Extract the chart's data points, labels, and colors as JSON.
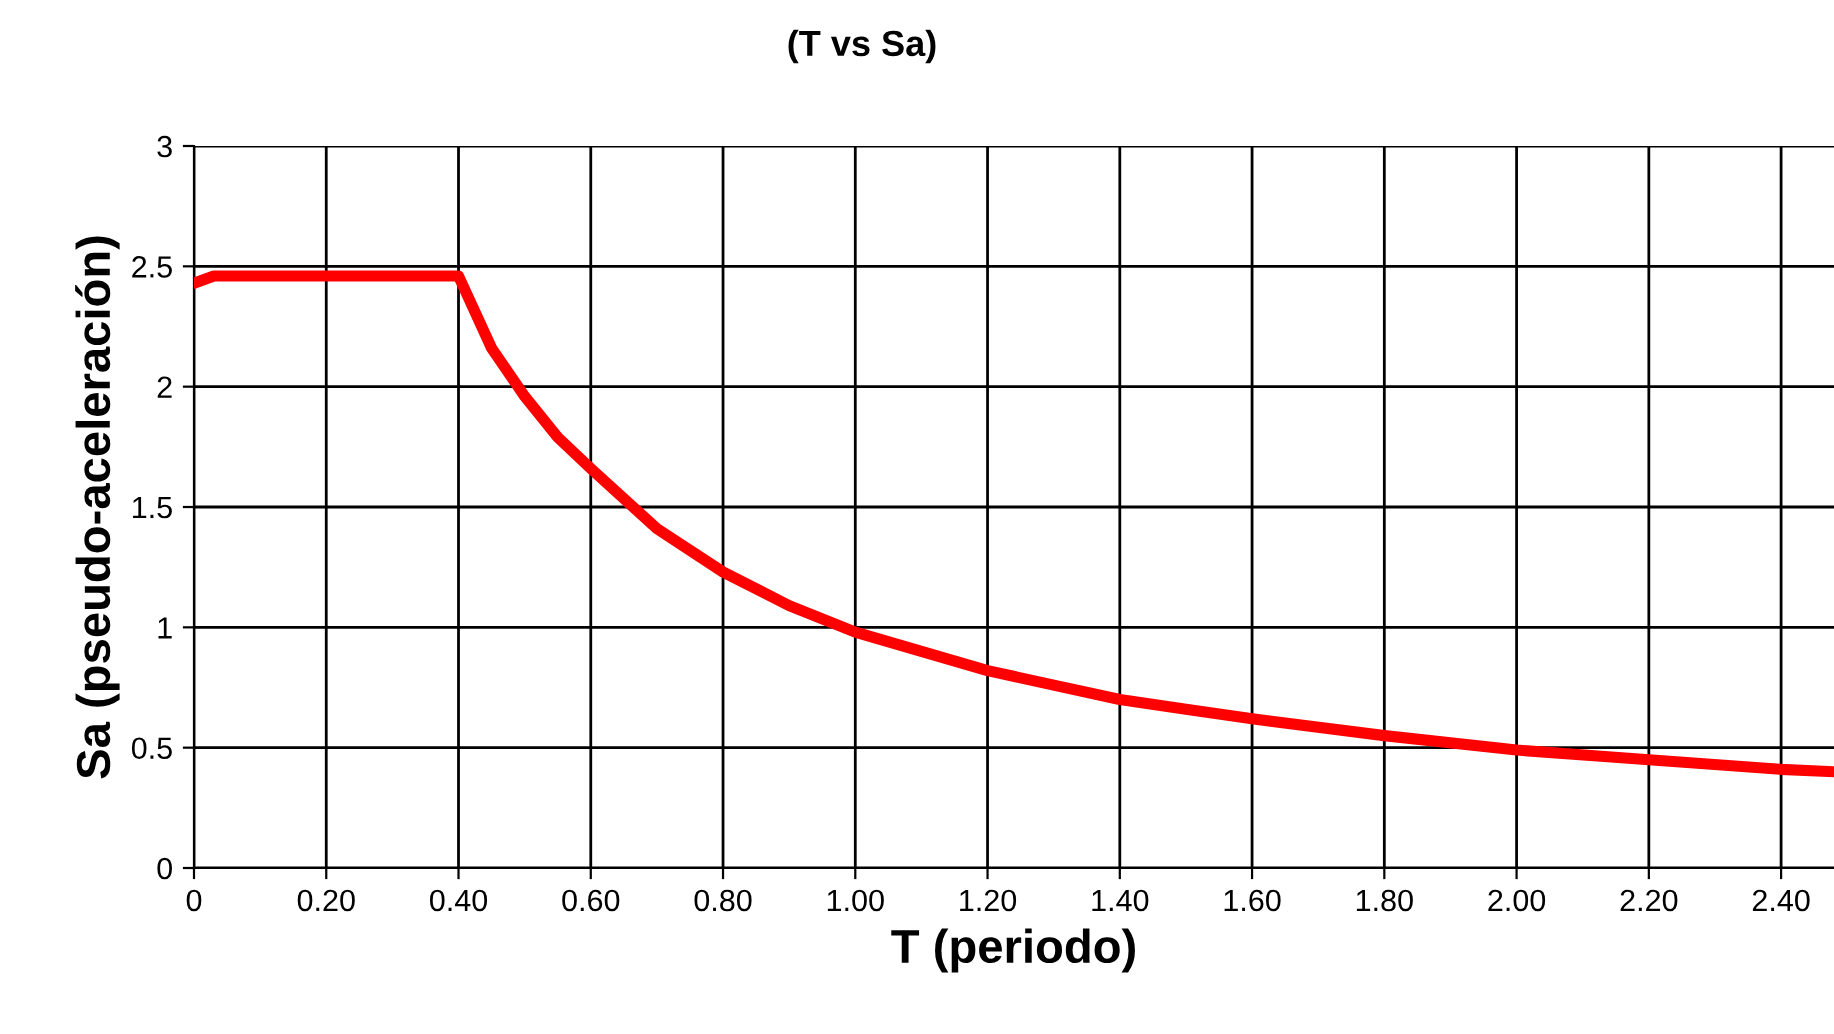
{
  "chart_data": {
    "type": "line",
    "title": "(T vs Sa)",
    "xlabel": "T (periodo)",
    "ylabel": "Sa (pseudo-aceleración)",
    "x": [
      0,
      0.03,
      0.1,
      0.2,
      0.3,
      0.4,
      0.45,
      0.5,
      0.55,
      0.6,
      0.7,
      0.8,
      0.9,
      1.0,
      1.1,
      1.2,
      1.3,
      1.4,
      1.5,
      1.6,
      1.8,
      2.0,
      2.2,
      2.4,
      2.48
    ],
    "series": [
      {
        "color": "#ff0000",
        "values": [
          2.43,
          2.46,
          2.46,
          2.46,
          2.46,
          2.46,
          2.16,
          1.96,
          1.79,
          1.66,
          1.41,
          1.23,
          1.09,
          0.98,
          0.9,
          0.82,
          0.76,
          0.7,
          0.66,
          0.62,
          0.55,
          0.49,
          0.45,
          0.41,
          0.4
        ]
      }
    ],
    "xlim": [
      0,
      2.48
    ],
    "ylim": [
      0,
      3
    ],
    "xticks": [
      0,
      {
        "value": 0.2,
        "label": "0.20"
      },
      {
        "value": 0.4,
        "label": "0.40"
      },
      {
        "value": 0.6,
        "label": "0.60"
      },
      {
        "value": 0.8,
        "label": "0.80"
      },
      {
        "value": 1.0,
        "label": "1.00"
      },
      {
        "value": 1.2,
        "label": "1.20"
      },
      {
        "value": 1.4,
        "label": "1.40"
      },
      {
        "value": 1.6,
        "label": "1.60"
      },
      {
        "value": 1.8,
        "label": "1.80"
      },
      {
        "value": 2.0,
        "label": "2.00"
      },
      {
        "value": 2.2,
        "label": "2.20"
      },
      {
        "value": 2.4,
        "label": "2.40"
      }
    ],
    "yticks": [
      0,
      0.5,
      1,
      1.5,
      2,
      2.5,
      3
    ],
    "grid": true,
    "marker": "none",
    "line_style": "solid",
    "legend": false
  }
}
